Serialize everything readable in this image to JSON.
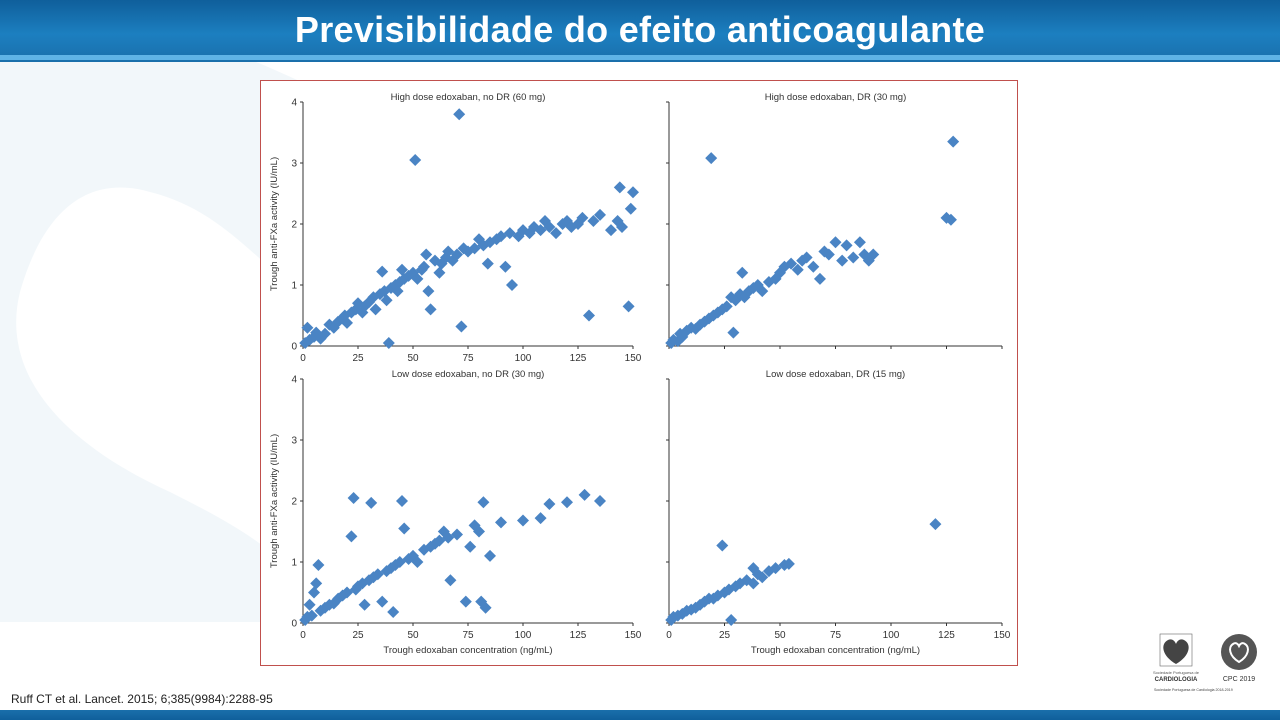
{
  "slide": {
    "title": "Previsibilidade do efeito anticoagulante",
    "citation": "Ruff CT et al. Lancet. 2015; 6;385(9984):2288-95",
    "logos": {
      "spc_line1": "Sociedade Portuguesa de",
      "spc_line2": "CARDIOLOGIA",
      "cpc_label": "CPC 2019",
      "footnote": "Sociedade Portuguesa de Cardiologia 2018-2019"
    },
    "colors": {
      "header": "#1a78b8",
      "marker": "#4a84c4",
      "frame": "#c0504d"
    }
  },
  "chart_data": [
    {
      "type": "scatter",
      "title": "High dose edoxaban, no DR (60 mg)",
      "ylabel": "Trough anti-FXa activity (IU/mL)",
      "xlabel": "",
      "xlim": [
        0,
        150
      ],
      "ylim": [
        0,
        4
      ],
      "xticks": [
        "0",
        "25",
        "50",
        "75",
        "100",
        "125",
        "150"
      ],
      "yticks": [
        "0",
        "1",
        "2",
        "3",
        "4"
      ],
      "points": [
        [
          1,
          0.05
        ],
        [
          2,
          0.3
        ],
        [
          3,
          0.1
        ],
        [
          5,
          0.15
        ],
        [
          6,
          0.22
        ],
        [
          8,
          0.12
        ],
        [
          10,
          0.2
        ],
        [
          12,
          0.35
        ],
        [
          14,
          0.3
        ],
        [
          16,
          0.4
        ],
        [
          18,
          0.45
        ],
        [
          19,
          0.5
        ],
        [
          20,
          0.38
        ],
        [
          22,
          0.55
        ],
        [
          24,
          0.6
        ],
        [
          25,
          0.7
        ],
        [
          27,
          0.55
        ],
        [
          28,
          0.65
        ],
        [
          30,
          0.72
        ],
        [
          32,
          0.8
        ],
        [
          33,
          0.6
        ],
        [
          35,
          0.85
        ],
        [
          36,
          1.22
        ],
        [
          37,
          0.9
        ],
        [
          38,
          0.75
        ],
        [
          39,
          0.05
        ],
        [
          40,
          0.95
        ],
        [
          42,
          1.0
        ],
        [
          43,
          0.9
        ],
        [
          44,
          1.05
        ],
        [
          45,
          1.25
        ],
        [
          46,
          1.1
        ],
        [
          48,
          1.15
        ],
        [
          50,
          1.2
        ],
        [
          51,
          3.05
        ],
        [
          52,
          1.1
        ],
        [
          54,
          1.25
        ],
        [
          55,
          1.3
        ],
        [
          56,
          1.5
        ],
        [
          57,
          0.9
        ],
        [
          58,
          0.6
        ],
        [
          60,
          1.4
        ],
        [
          62,
          1.2
        ],
        [
          63,
          1.35
        ],
        [
          65,
          1.45
        ],
        [
          66,
          1.55
        ],
        [
          68,
          1.4
        ],
        [
          70,
          1.5
        ],
        [
          71,
          3.8
        ],
        [
          72,
          0.32
        ],
        [
          73,
          1.6
        ],
        [
          75,
          1.55
        ],
        [
          78,
          1.6
        ],
        [
          80,
          1.75
        ],
        [
          82,
          1.65
        ],
        [
          84,
          1.35
        ],
        [
          85,
          1.7
        ],
        [
          88,
          1.75
        ],
        [
          90,
          1.8
        ],
        [
          92,
          1.3
        ],
        [
          94,
          1.85
        ],
        [
          95,
          1.0
        ],
        [
          98,
          1.8
        ],
        [
          100,
          1.9
        ],
        [
          103,
          1.85
        ],
        [
          105,
          1.95
        ],
        [
          108,
          1.9
        ],
        [
          110,
          2.05
        ],
        [
          112,
          1.95
        ],
        [
          115,
          1.85
        ],
        [
          118,
          2.0
        ],
        [
          120,
          2.05
        ],
        [
          122,
          1.95
        ],
        [
          125,
          2.0
        ],
        [
          127,
          2.1
        ],
        [
          130,
          0.5
        ],
        [
          132,
          2.05
        ],
        [
          135,
          2.15
        ],
        [
          140,
          1.9
        ],
        [
          143,
          2.05
        ],
        [
          144,
          2.6
        ],
        [
          145,
          1.95
        ],
        [
          148,
          0.65
        ],
        [
          149,
          2.25
        ],
        [
          150,
          2.52
        ]
      ]
    },
    {
      "type": "scatter",
      "title": "High dose edoxaban, DR (30 mg)",
      "ylabel": "",
      "xlabel": "",
      "xlim": [
        0,
        150
      ],
      "ylim": [
        0,
        4
      ],
      "xticks": [],
      "yticks": [],
      "points": [
        [
          1,
          0.05
        ],
        [
          2,
          0.1
        ],
        [
          4,
          0.08
        ],
        [
          5,
          0.2
        ],
        [
          6,
          0.15
        ],
        [
          8,
          0.25
        ],
        [
          10,
          0.3
        ],
        [
          12,
          0.28
        ],
        [
          14,
          0.35
        ],
        [
          16,
          0.4
        ],
        [
          18,
          0.45
        ],
        [
          19,
          3.08
        ],
        [
          20,
          0.5
        ],
        [
          22,
          0.55
        ],
        [
          24,
          0.6
        ],
        [
          26,
          0.65
        ],
        [
          28,
          0.8
        ],
        [
          29,
          0.22
        ],
        [
          30,
          0.75
        ],
        [
          32,
          0.85
        ],
        [
          33,
          1.2
        ],
        [
          34,
          0.8
        ],
        [
          36,
          0.9
        ],
        [
          38,
          0.95
        ],
        [
          40,
          1.0
        ],
        [
          42,
          0.9
        ],
        [
          45,
          1.05
        ],
        [
          48,
          1.1
        ],
        [
          50,
          1.2
        ],
        [
          52,
          1.3
        ],
        [
          55,
          1.35
        ],
        [
          58,
          1.25
        ],
        [
          60,
          1.4
        ],
        [
          62,
          1.45
        ],
        [
          65,
          1.3
        ],
        [
          68,
          1.1
        ],
        [
          70,
          1.55
        ],
        [
          72,
          1.5
        ],
        [
          75,
          1.7
        ],
        [
          78,
          1.4
        ],
        [
          80,
          1.65
        ],
        [
          83,
          1.45
        ],
        [
          86,
          1.7
        ],
        [
          88,
          1.5
        ],
        [
          90,
          1.4
        ],
        [
          92,
          1.5
        ],
        [
          125,
          2.1
        ],
        [
          127,
          2.07
        ],
        [
          128,
          3.35
        ]
      ]
    },
    {
      "type": "scatter",
      "title": "Low dose edoxaban, no DR (30 mg)",
      "ylabel": "Trough anti-FXa activity (IU/mL)",
      "xlabel": "Trough edoxaban concentration (ng/mL)",
      "xlim": [
        0,
        150
      ],
      "ylim": [
        0,
        4
      ],
      "xticks": [
        "0",
        "25",
        "50",
        "75",
        "100",
        "125",
        "150"
      ],
      "yticks": [
        "0",
        "1",
        "2",
        "3",
        "4"
      ],
      "points": [
        [
          1,
          0.05
        ],
        [
          2,
          0.1
        ],
        [
          3,
          0.3
        ],
        [
          4,
          0.12
        ],
        [
          5,
          0.5
        ],
        [
          6,
          0.65
        ],
        [
          7,
          0.95
        ],
        [
          8,
          0.2
        ],
        [
          10,
          0.25
        ],
        [
          12,
          0.3
        ],
        [
          14,
          0.32
        ],
        [
          16,
          0.4
        ],
        [
          18,
          0.45
        ],
        [
          20,
          0.5
        ],
        [
          22,
          1.42
        ],
        [
          23,
          2.05
        ],
        [
          24,
          0.55
        ],
        [
          25,
          0.6
        ],
        [
          27,
          0.65
        ],
        [
          28,
          0.3
        ],
        [
          30,
          0.7
        ],
        [
          31,
          1.97
        ],
        [
          32,
          0.75
        ],
        [
          34,
          0.8
        ],
        [
          36,
          0.35
        ],
        [
          38,
          0.85
        ],
        [
          40,
          0.9
        ],
        [
          41,
          0.18
        ],
        [
          42,
          0.95
        ],
        [
          44,
          1.0
        ],
        [
          45,
          2.0
        ],
        [
          46,
          1.55
        ],
        [
          48,
          1.05
        ],
        [
          50,
          1.1
        ],
        [
          52,
          1.0
        ],
        [
          55,
          1.2
        ],
        [
          58,
          1.25
        ],
        [
          60,
          1.3
        ],
        [
          62,
          1.35
        ],
        [
          64,
          1.5
        ],
        [
          66,
          1.4
        ],
        [
          67,
          0.7
        ],
        [
          70,
          1.45
        ],
        [
          74,
          0.35
        ],
        [
          76,
          1.25
        ],
        [
          78,
          1.6
        ],
        [
          80,
          1.5
        ],
        [
          81,
          0.35
        ],
        [
          82,
          1.98
        ],
        [
          83,
          0.25
        ],
        [
          85,
          1.1
        ],
        [
          90,
          1.65
        ],
        [
          100,
          1.68
        ],
        [
          108,
          1.72
        ],
        [
          112,
          1.95
        ],
        [
          120,
          1.98
        ],
        [
          128,
          2.1
        ],
        [
          135,
          2.0
        ]
      ]
    },
    {
      "type": "scatter",
      "title": "Low dose edoxaban, DR (15 mg)",
      "ylabel": "",
      "xlabel": "Trough edoxaban concentration (ng/mL)",
      "xlim": [
        0,
        150
      ],
      "ylim": [
        0,
        4
      ],
      "xticks": [
        "0",
        "25",
        "50",
        "75",
        "100",
        "125",
        "150"
      ],
      "yticks": [],
      "points": [
        [
          1,
          0.05
        ],
        [
          2,
          0.1
        ],
        [
          4,
          0.12
        ],
        [
          6,
          0.15
        ],
        [
          8,
          0.2
        ],
        [
          10,
          0.22
        ],
        [
          12,
          0.25
        ],
        [
          14,
          0.3
        ],
        [
          16,
          0.35
        ],
        [
          18,
          0.4
        ],
        [
          20,
          0.4
        ],
        [
          22,
          0.45
        ],
        [
          24,
          1.27
        ],
        [
          25,
          0.5
        ],
        [
          27,
          0.55
        ],
        [
          28,
          0.05
        ],
        [
          30,
          0.6
        ],
        [
          32,
          0.65
        ],
        [
          35,
          0.7
        ],
        [
          38,
          0.65
        ],
        [
          38,
          0.9
        ],
        [
          40,
          0.8
        ],
        [
          42,
          0.75
        ],
        [
          45,
          0.85
        ],
        [
          48,
          0.9
        ],
        [
          52,
          0.95
        ],
        [
          54,
          0.97
        ],
        [
          120,
          1.62
        ]
      ]
    }
  ]
}
